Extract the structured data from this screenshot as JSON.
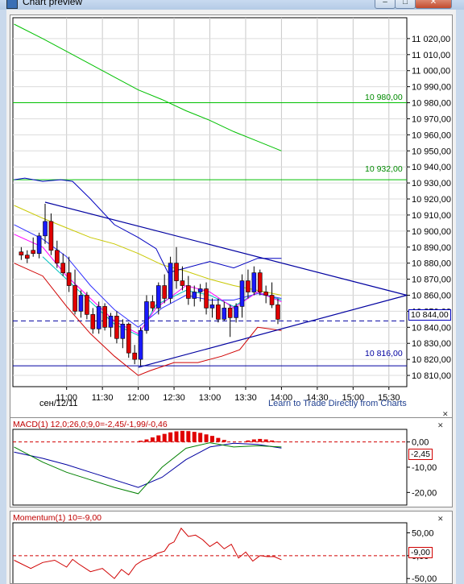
{
  "window": {
    "title": "Chart preview"
  },
  "main_chart": {
    "date_label": "сен/12/11",
    "learn_link": "Learn to Trade Directly from Charts",
    "level_labels": [
      {
        "text": "10 980,00",
        "value": 10980
      },
      {
        "text": "10 932,00",
        "value": 10932
      },
      {
        "text": "10 816,00",
        "value": 10816
      }
    ],
    "current_price_label": "10 844,00",
    "colors": {
      "up": "#1a1aff",
      "down": "#e00000",
      "green": "#00c000",
      "blue": "#0000a0"
    }
  },
  "macd": {
    "title": "MACD(1) 12,0;26,0;9,0=-2,45/-1,99/-0,46",
    "value_label": "-2,45"
  },
  "momentum": {
    "title": "Momentum(1) 10=-9,00",
    "value_label": "-9,00"
  },
  "chart_data": [
    {
      "type": "candlestick",
      "x_ticks": [
        "11:00",
        "11:30",
        "12:00",
        "12:30",
        "13:00",
        "13:30",
        "14:00",
        "14:30",
        "15:00",
        "15:30"
      ],
      "y_ticks": [
        "10 810,00",
        "10 820,00",
        "10 830,00",
        "10 840,00",
        "10 850,00",
        "10 860,00",
        "10 870,00",
        "10 880,00",
        "10 890,00",
        "10 900,00",
        "10 910,00",
        "10 920,00",
        "10 930,00",
        "10 940,00",
        "10 950,00",
        "10 960,00",
        "10 970,00",
        "10 980,00",
        "10 990,00",
        "11 000,00",
        "11 010,00",
        "11 020,00"
      ],
      "ylim": [
        10803,
        11033
      ],
      "xlim_minutes": [
        615,
        945
      ],
      "candles": [
        {
          "t": 622,
          "o": 10887,
          "h": 10890,
          "l": 10882,
          "c": 10885
        },
        {
          "t": 627,
          "o": 10885,
          "h": 10888,
          "l": 10880,
          "c": 10883
        },
        {
          "t": 632,
          "o": 10888,
          "h": 10896,
          "l": 10884,
          "c": 10886
        },
        {
          "t": 637,
          "o": 10886,
          "h": 10899,
          "l": 10883,
          "c": 10897
        },
        {
          "t": 642,
          "o": 10897,
          "h": 10917,
          "l": 10892,
          "c": 10906
        },
        {
          "t": 647,
          "o": 10906,
          "h": 10911,
          "l": 10885,
          "c": 10888
        },
        {
          "t": 652,
          "o": 10888,
          "h": 10894,
          "l": 10877,
          "c": 10880
        },
        {
          "t": 657,
          "o": 10880,
          "h": 10886,
          "l": 10872,
          "c": 10874
        },
        {
          "t": 662,
          "o": 10874,
          "h": 10884,
          "l": 10862,
          "c": 10866
        },
        {
          "t": 667,
          "o": 10866,
          "h": 10876,
          "l": 10848,
          "c": 10850
        },
        {
          "t": 672,
          "o": 10850,
          "h": 10863,
          "l": 10846,
          "c": 10860
        },
        {
          "t": 677,
          "o": 10860,
          "h": 10862,
          "l": 10845,
          "c": 10848
        },
        {
          "t": 682,
          "o": 10848,
          "h": 10852,
          "l": 10836,
          "c": 10839
        },
        {
          "t": 687,
          "o": 10839,
          "h": 10856,
          "l": 10836,
          "c": 10853
        },
        {
          "t": 692,
          "o": 10853,
          "h": 10855,
          "l": 10838,
          "c": 10840
        },
        {
          "t": 697,
          "o": 10840,
          "h": 10849,
          "l": 10834,
          "c": 10847
        },
        {
          "t": 702,
          "o": 10847,
          "h": 10850,
          "l": 10830,
          "c": 10833
        },
        {
          "t": 707,
          "o": 10833,
          "h": 10845,
          "l": 10827,
          "c": 10842
        },
        {
          "t": 712,
          "o": 10842,
          "h": 10843,
          "l": 10821,
          "c": 10824
        },
        {
          "t": 717,
          "o": 10824,
          "h": 10829,
          "l": 10817,
          "c": 10820
        },
        {
          "t": 722,
          "o": 10820,
          "h": 10840,
          "l": 10816,
          "c": 10838
        },
        {
          "t": 727,
          "o": 10838,
          "h": 10860,
          "l": 10836,
          "c": 10856
        },
        {
          "t": 732,
          "o": 10856,
          "h": 10860,
          "l": 10850,
          "c": 10852
        },
        {
          "t": 737,
          "o": 10852,
          "h": 10868,
          "l": 10848,
          "c": 10866
        },
        {
          "t": 742,
          "o": 10866,
          "h": 10873,
          "l": 10855,
          "c": 10858
        },
        {
          "t": 747,
          "o": 10858,
          "h": 10884,
          "l": 10855,
          "c": 10880
        },
        {
          "t": 752,
          "o": 10880,
          "h": 10890,
          "l": 10864,
          "c": 10869
        },
        {
          "t": 757,
          "o": 10869,
          "h": 10878,
          "l": 10863,
          "c": 10866
        },
        {
          "t": 762,
          "o": 10866,
          "h": 10872,
          "l": 10854,
          "c": 10858
        },
        {
          "t": 767,
          "o": 10858,
          "h": 10866,
          "l": 10853,
          "c": 10862
        },
        {
          "t": 772,
          "o": 10862,
          "h": 10867,
          "l": 10856,
          "c": 10864
        },
        {
          "t": 777,
          "o": 10864,
          "h": 10868,
          "l": 10848,
          "c": 10852
        },
        {
          "t": 782,
          "o": 10852,
          "h": 10858,
          "l": 10846,
          "c": 10854
        },
        {
          "t": 787,
          "o": 10854,
          "h": 10858,
          "l": 10843,
          "c": 10845
        },
        {
          "t": 792,
          "o": 10845,
          "h": 10856,
          "l": 10844,
          "c": 10852
        },
        {
          "t": 797,
          "o": 10852,
          "h": 10854,
          "l": 10834,
          "c": 10846
        },
        {
          "t": 802,
          "o": 10846,
          "h": 10855,
          "l": 10843,
          "c": 10853
        },
        {
          "t": 807,
          "o": 10853,
          "h": 10873,
          "l": 10846,
          "c": 10869
        },
        {
          "t": 812,
          "o": 10869,
          "h": 10876,
          "l": 10858,
          "c": 10862
        },
        {
          "t": 817,
          "o": 10862,
          "h": 10878,
          "l": 10860,
          "c": 10874
        },
        {
          "t": 822,
          "o": 10874,
          "h": 10876,
          "l": 10860,
          "c": 10862
        },
        {
          "t": 827,
          "o": 10862,
          "h": 10866,
          "l": 10855,
          "c": 10860
        },
        {
          "t": 832,
          "o": 10860,
          "h": 10868,
          "l": 10852,
          "c": 10854
        },
        {
          "t": 837,
          "o": 10854,
          "h": 10858,
          "l": 10842,
          "c": 10845
        }
      ],
      "horizontal_levels": [
        {
          "value": 10980,
          "color": "#00c000"
        },
        {
          "value": 10932,
          "color": "#00c000"
        },
        {
          "value": 10816,
          "color": "#0000a0"
        }
      ],
      "current_price": 10844,
      "trend_lines": [
        {
          "from": [
            642,
            10918
          ],
          "to": [
            945,
            10860
          ],
          "color": "#0000a0"
        },
        {
          "from": [
            720,
            10815
          ],
          "to": [
            945,
            10860
          ],
          "color": "#0000a0"
        }
      ],
      "overlays": [
        {
          "name": "",
          "color": "#00c000",
          "points": [
            [
              616,
              11029
            ],
            [
              640,
              11020
            ],
            [
              660,
              11012
            ],
            [
              680,
              11004
            ],
            [
              700,
              10996
            ],
            [
              720,
              10988
            ],
            [
              740,
              10982
            ],
            [
              760,
              10975
            ],
            [
              780,
              10969
            ],
            [
              800,
              10962
            ],
            [
              820,
              10956
            ],
            [
              840,
              10950
            ]
          ]
        },
        {
          "name": "",
          "color": "#c8c800",
          "points": [
            [
              616,
              10916
            ],
            [
              640,
              10908
            ],
            [
              660,
              10902
            ],
            [
              680,
              10896
            ],
            [
              700,
              10892
            ],
            [
              720,
              10886
            ],
            [
              740,
              10879
            ],
            [
              760,
              10875
            ],
            [
              780,
              10870
            ],
            [
              800,
              10866
            ],
            [
              820,
              10863
            ],
            [
              840,
              10860
            ]
          ]
        },
        {
          "name": "",
          "color": "#0000c0",
          "points": [
            [
              616,
              10932
            ],
            [
              625,
              10933
            ],
            [
              640,
              10931
            ],
            [
              655,
              10932
            ],
            [
              665,
              10931
            ],
            [
              680,
              10920
            ],
            [
              700,
              10904
            ],
            [
              720,
              10896
            ],
            [
              735,
              10889
            ],
            [
              745,
              10874
            ],
            [
              760,
              10877
            ],
            [
              780,
              10881
            ],
            [
              800,
              10877
            ],
            [
              820,
              10883
            ],
            [
              840,
              10883
            ]
          ]
        },
        {
          "name": "",
          "color": "#3030ff",
          "points": [
            [
              616,
              10904
            ],
            [
              640,
              10895
            ],
            [
              660,
              10884
            ],
            [
              680,
              10866
            ],
            [
              700,
              10851
            ],
            [
              720,
              10840
            ],
            [
              740,
              10852
            ],
            [
              760,
              10860
            ],
            [
              780,
              10857
            ],
            [
              800,
              10857
            ],
            [
              820,
              10861
            ],
            [
              840,
              10858
            ]
          ]
        },
        {
          "name": "",
          "color": "#00c0c0",
          "points": [
            [
              640,
              10884
            ],
            [
              660,
              10870
            ],
            [
              680,
              10856
            ],
            [
              700,
              10842
            ],
            [
              720,
              10835
            ],
            [
              735,
              10854
            ],
            [
              760,
              10863
            ],
            [
              780,
              10860
            ],
            [
              800,
              10853
            ],
            [
              820,
              10862
            ],
            [
              840,
              10857
            ]
          ]
        },
        {
          "name": "",
          "color": "#ff00ff",
          "points": [
            [
              616,
              10898
            ],
            [
              640,
              10890
            ],
            [
              660,
              10872
            ],
            [
              680,
              10858
            ],
            [
              700,
              10844
            ],
            [
              720,
              10836
            ],
            [
              735,
              10852
            ],
            [
              760,
              10866
            ],
            [
              780,
              10862
            ],
            [
              800,
              10852
            ],
            [
              820,
              10862
            ],
            [
              840,
              10856
            ]
          ]
        },
        {
          "name": "",
          "color": "#d00000",
          "points": [
            [
              616,
              10880
            ],
            [
              640,
              10872
            ],
            [
              660,
              10853
            ],
            [
              680,
              10836
            ],
            [
              700,
              10822
            ],
            [
              720,
              10810
            ],
            [
              730,
              10813
            ],
            [
              750,
              10818
            ],
            [
              770,
              10818
            ],
            [
              790,
              10822
            ],
            [
              805,
              10826
            ],
            [
              820,
              10840
            ],
            [
              840,
              10838
            ]
          ]
        }
      ]
    },
    {
      "type": "bar+line",
      "y_ticks": [
        "0,00",
        "-10,00",
        "-20,00"
      ],
      "ylim": [
        -25,
        5
      ],
      "histogram_x": [
        722,
        727,
        732,
        737,
        742,
        747,
        752,
        757,
        762,
        767,
        772,
        777,
        782,
        787,
        792,
        812,
        817,
        822,
        827,
        832,
        837
      ],
      "histogram": [
        0.5,
        1.0,
        1.8,
        2.6,
        3.2,
        3.8,
        4.2,
        4.4,
        4.3,
        4.0,
        3.6,
        3.0,
        2.4,
        1.6,
        0.8,
        0.6,
        1.0,
        1.2,
        1.0,
        0.6,
        0.2
      ],
      "series": [
        {
          "name": "",
          "color": "#0000a0",
          "points": [
            [
              616,
              -4
            ],
            [
              640,
              -6.5
            ],
            [
              660,
              -9
            ],
            [
              680,
              -12
            ],
            [
              700,
              -15
            ],
            [
              720,
              -18
            ],
            [
              740,
              -14
            ],
            [
              760,
              -7
            ],
            [
              780,
              -2
            ],
            [
              800,
              -0.5
            ],
            [
              820,
              -1
            ],
            [
              840,
              -2.45
            ]
          ]
        },
        {
          "name": "",
          "color": "#008000",
          "points": [
            [
              616,
              -2
            ],
            [
              640,
              -8
            ],
            [
              660,
              -12
            ],
            [
              680,
              -15
            ],
            [
              700,
              -18
            ],
            [
              720,
              -20.5
            ],
            [
              740,
              -10
            ],
            [
              760,
              -2.5
            ],
            [
              780,
              -0.3
            ],
            [
              800,
              -2
            ],
            [
              820,
              -1.5
            ],
            [
              840,
              -2
            ]
          ]
        }
      ]
    },
    {
      "type": "line",
      "y_ticks": [
        "50,00",
        "0,00",
        "-50,00"
      ],
      "ylim": [
        -62,
        72
      ],
      "zero_line": true,
      "series": [
        {
          "name": "",
          "color": "#d00000",
          "points": [
            [
              616,
              -10
            ],
            [
              630,
              -28
            ],
            [
              640,
              -15
            ],
            [
              650,
              -10
            ],
            [
              660,
              -25
            ],
            [
              665,
              -8
            ],
            [
              670,
              -18
            ],
            [
              680,
              -35
            ],
            [
              690,
              -28
            ],
            [
              700,
              -50
            ],
            [
              706,
              -30
            ],
            [
              712,
              -42
            ],
            [
              718,
              -20
            ],
            [
              724,
              -10
            ],
            [
              730,
              -5
            ],
            [
              736,
              5
            ],
            [
              742,
              10
            ],
            [
              746,
              25
            ],
            [
              750,
              30
            ],
            [
              756,
              60
            ],
            [
              762,
              42
            ],
            [
              768,
              45
            ],
            [
              774,
              35
            ],
            [
              780,
              20
            ],
            [
              786,
              30
            ],
            [
              792,
              15
            ],
            [
              798,
              25
            ],
            [
              804,
              -5
            ],
            [
              810,
              8
            ],
            [
              816,
              -12
            ],
            [
              822,
              0
            ],
            [
              828,
              -2
            ],
            [
              834,
              -2
            ],
            [
              840,
              -9
            ]
          ]
        }
      ]
    }
  ]
}
